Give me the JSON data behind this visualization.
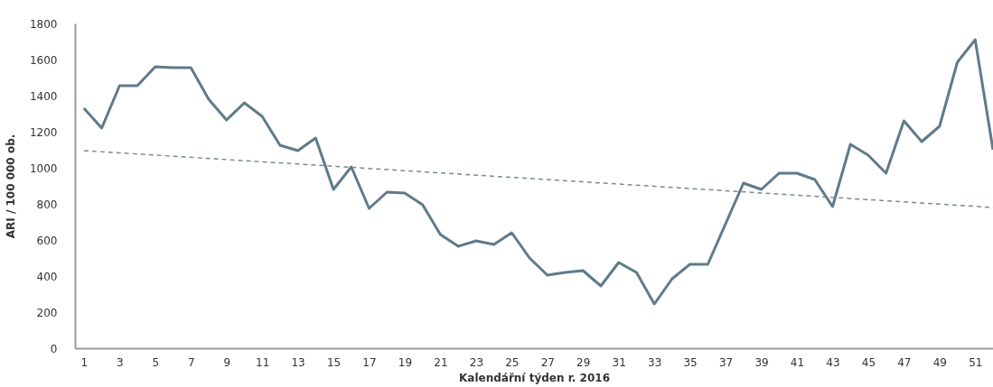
{
  "chart_data": {
    "type": "line",
    "xlabel": "Kalendářní týden r. 2016",
    "ylabel": "ARI / 100 000 ob.",
    "x": [
      1,
      2,
      3,
      4,
      5,
      6,
      7,
      8,
      9,
      10,
      11,
      12,
      13,
      14,
      15,
      16,
      17,
      18,
      19,
      20,
      21,
      22,
      23,
      24,
      25,
      26,
      27,
      28,
      29,
      30,
      31,
      32,
      33,
      34,
      35,
      36,
      37,
      38,
      39,
      40,
      41,
      42,
      43,
      44,
      45,
      46,
      47,
      48,
      49,
      50,
      51,
      52
    ],
    "xlim": [
      0.5,
      52
    ],
    "xticks": [
      1,
      3,
      5,
      7,
      9,
      11,
      13,
      15,
      17,
      19,
      21,
      23,
      25,
      27,
      29,
      31,
      33,
      35,
      37,
      39,
      41,
      43,
      45,
      47,
      49,
      51
    ],
    "ylim": [
      0,
      1800
    ],
    "yticks": [
      0,
      200,
      400,
      600,
      800,
      1000,
      1200,
      1400,
      1600,
      1800
    ],
    "marker": "none",
    "series": [
      {
        "color": "#5f7b8a",
        "line_style": "solid",
        "values": [
          1330,
          1220,
          1455,
          1455,
          1560,
          1555,
          1555,
          1380,
          1265,
          1360,
          1285,
          1125,
          1095,
          1165,
          880,
          1005,
          775,
          865,
          860,
          795,
          630,
          565,
          595,
          575,
          640,
          500,
          405,
          420,
          430,
          345,
          475,
          420,
          245,
          385,
          465,
          465,
          690,
          915,
          880,
          970,
          970,
          935,
          785,
          1130,
          1070,
          970,
          1260,
          1145,
          1230,
          1585,
          1710,
          1100
        ]
      },
      {
        "type": "line",
        "color": "#7d8a92",
        "line_style": "dashed",
        "x": [
          1,
          52
        ],
        "values": [
          1095,
          780
        ]
      }
    ]
  }
}
